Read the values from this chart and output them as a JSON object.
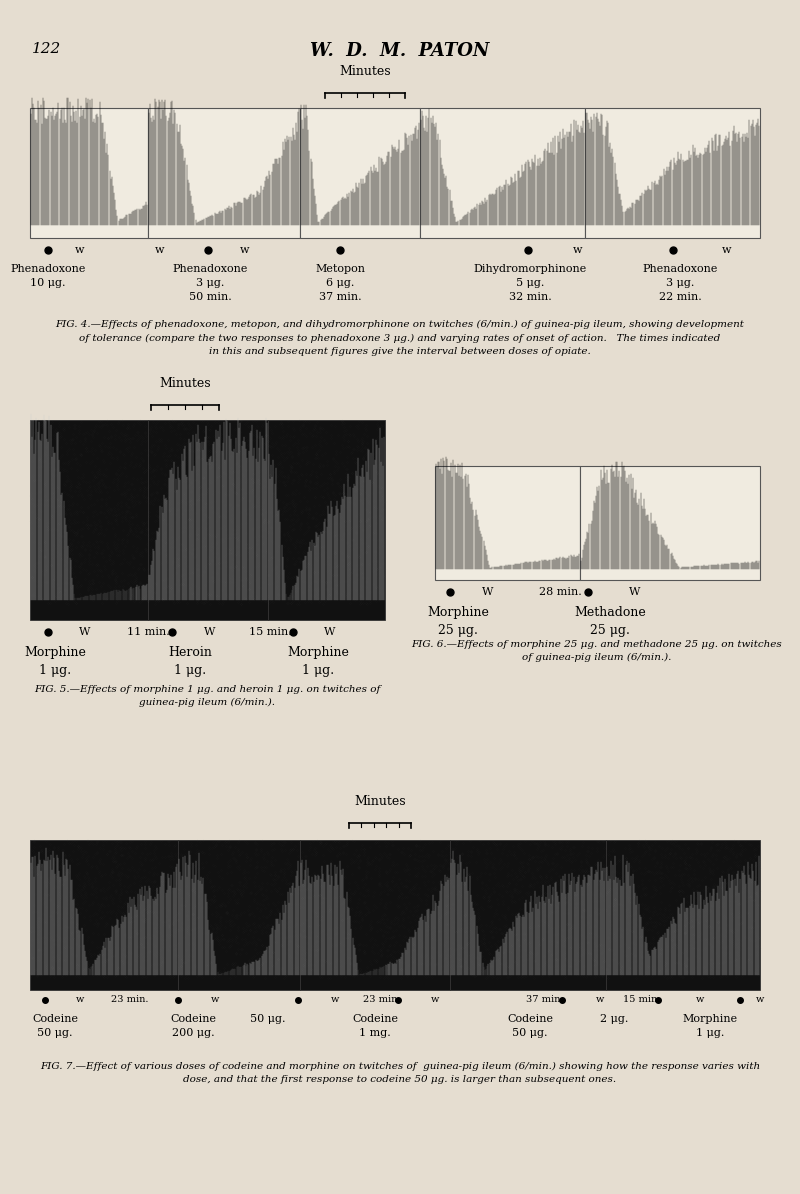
{
  "bg_color": "#e5ddd0",
  "page_number": "122",
  "header_title": "W.  D.  M.  PATON",
  "fig4": {
    "caption": "FIG. 4.—Effects of phenadoxone, metopon, and dihydromorphinone on twitches (6/min.) of guinea-pig ileum, showing development\nof tolerance (compare the two responses to phenadoxone 3 μg.) and varying rates of onset of action.   The times indicated\nin this and subsequent figures give the interval between doses of opiate."
  },
  "fig5": {
    "caption": "FIG. 5.—Effects of morphine 1 μg. and heroin 1 μg. on twitches of\nguinea-pig ileum (6/min.)."
  },
  "fig6": {
    "caption": "FIG. 6.—Effects of morphine 25 μg. and methadone 25 μg. on twitches\nof guinea-pig ileum (6/min.)."
  },
  "fig7": {
    "caption": "FIG. 7.—Effect of various doses of codeine and morphine on twitches of  guinea-pig ileum (6/min.) showing how the response varies with\ndose, and that the first response to codeine 50 μg. is larger than subsequent ones."
  }
}
